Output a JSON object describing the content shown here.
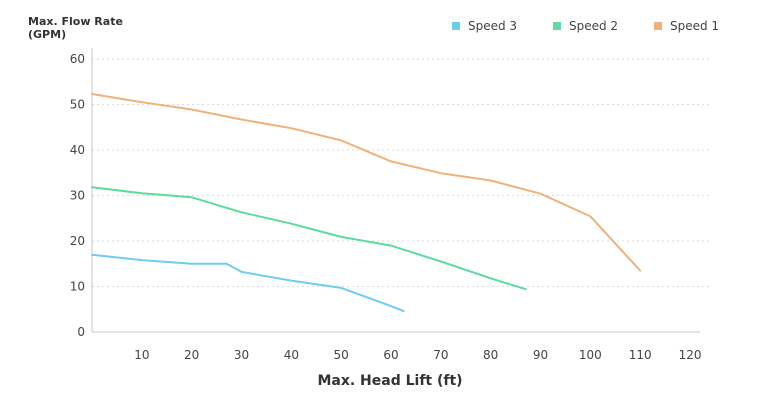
{
  "chart_data": {
    "type": "line",
    "ylabel": "Max. Flow Rate\n(GPM)",
    "xlabel": "Max. Head Lift (ft)",
    "xlim": [
      0,
      122
    ],
    "ylim": [
      0,
      60
    ],
    "x_ticks": [
      10,
      20,
      30,
      40,
      50,
      60,
      70,
      80,
      90,
      100,
      110,
      120
    ],
    "y_ticks": [
      0,
      10,
      20,
      30,
      40,
      50,
      60
    ],
    "grid": "horizontal dotted",
    "legend_position": "top-right",
    "series": [
      {
        "name": "Speed 3",
        "color": "#6fcdef",
        "points": [
          [
            0,
            17
          ],
          [
            10,
            15.8
          ],
          [
            20,
            15
          ],
          [
            27,
            15
          ],
          [
            30,
            13.2
          ],
          [
            40,
            11.3
          ],
          [
            50,
            9.7
          ],
          [
            60,
            5.7
          ],
          [
            62.5,
            4.6
          ]
        ]
      },
      {
        "name": "Speed 2",
        "color": "#5ddba0",
        "points": [
          [
            0,
            31.8
          ],
          [
            10,
            30.5
          ],
          [
            20,
            29.6
          ],
          [
            30,
            26.3
          ],
          [
            40,
            23.8
          ],
          [
            50,
            20.9
          ],
          [
            60,
            19
          ],
          [
            70,
            15.5
          ],
          [
            80,
            11.8
          ],
          [
            87,
            9.4
          ]
        ]
      },
      {
        "name": "Speed 1",
        "color": "#f0b27a",
        "points": [
          [
            0,
            52.3
          ],
          [
            10,
            50.5
          ],
          [
            20,
            48.9
          ],
          [
            30,
            46.7
          ],
          [
            40,
            44.8
          ],
          [
            50,
            42.1
          ],
          [
            60,
            37.5
          ],
          [
            70,
            34.9
          ],
          [
            80,
            33.3
          ],
          [
            90,
            30.4
          ],
          [
            100,
            25.4
          ],
          [
            110,
            13.5
          ]
        ]
      }
    ]
  }
}
